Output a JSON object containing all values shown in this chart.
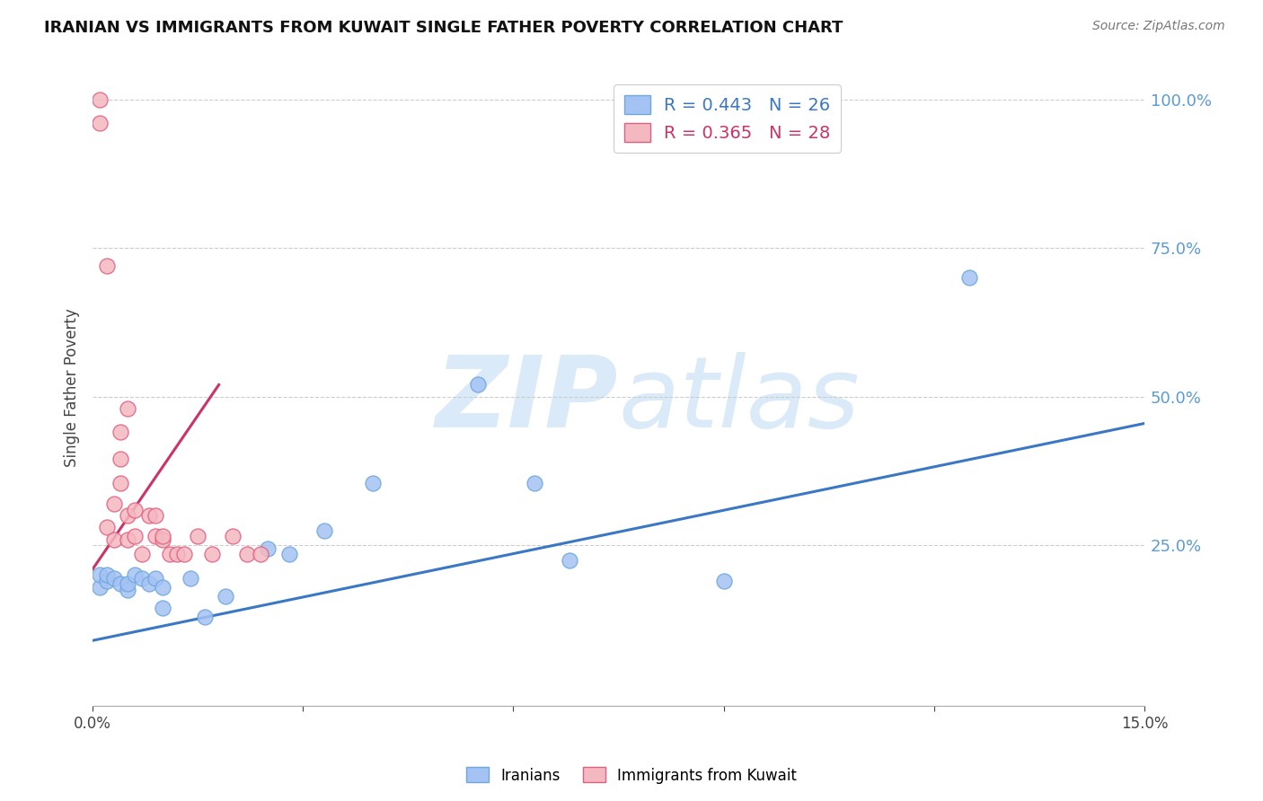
{
  "title": "IRANIAN VS IMMIGRANTS FROM KUWAIT SINGLE FATHER POVERTY CORRELATION CHART",
  "source": "Source: ZipAtlas.com",
  "ylabel": "Single Father Poverty",
  "xlim": [
    0.0,
    0.15
  ],
  "ylim": [
    -0.02,
    1.05
  ],
  "xticks": [
    0.0,
    0.03,
    0.06,
    0.09,
    0.12,
    0.15
  ],
  "xticklabels": [
    "0.0%",
    "",
    "",
    "",
    "",
    "15.0%"
  ],
  "yticks_right": [
    0.25,
    0.5,
    0.75,
    1.0
  ],
  "ytick_right_labels": [
    "25.0%",
    "50.0%",
    "75.0%",
    "100.0%"
  ],
  "iranian_color": "#a4c2f4",
  "iranian_edge_color": "#6fa8dc",
  "kuwait_color": "#f4b8c1",
  "kuwait_edge_color": "#e06080",
  "iranian_R": 0.443,
  "iranian_N": 26,
  "kuwait_R": 0.365,
  "kuwait_N": 28,
  "blue_line_color": "#3b78c4",
  "pink_line_color": "#cc3366",
  "watermark_zip": "ZIP",
  "watermark_atlas": "atlas",
  "watermark_color": "#daeaf8",
  "iranians_x": [
    0.001,
    0.001,
    0.002,
    0.002,
    0.003,
    0.004,
    0.005,
    0.005,
    0.006,
    0.007,
    0.008,
    0.009,
    0.01,
    0.01,
    0.014,
    0.016,
    0.019,
    0.025,
    0.028,
    0.033,
    0.04,
    0.055,
    0.063,
    0.068,
    0.09,
    0.125
  ],
  "iranians_y": [
    0.18,
    0.2,
    0.19,
    0.2,
    0.195,
    0.185,
    0.175,
    0.185,
    0.2,
    0.195,
    0.185,
    0.195,
    0.145,
    0.18,
    0.195,
    0.13,
    0.165,
    0.245,
    0.235,
    0.275,
    0.355,
    0.52,
    0.355,
    0.225,
    0.19,
    0.7
  ],
  "kuwait_x": [
    0.001,
    0.001,
    0.002,
    0.002,
    0.003,
    0.003,
    0.004,
    0.004,
    0.005,
    0.005,
    0.006,
    0.006,
    0.007,
    0.008,
    0.009,
    0.009,
    0.01,
    0.01,
    0.011,
    0.012,
    0.013,
    0.015,
    0.017,
    0.02,
    0.022,
    0.024,
    0.004,
    0.005
  ],
  "kuwait_y": [
    0.96,
    1.0,
    0.72,
    0.28,
    0.26,
    0.32,
    0.395,
    0.355,
    0.3,
    0.26,
    0.31,
    0.265,
    0.235,
    0.3,
    0.265,
    0.3,
    0.26,
    0.265,
    0.235,
    0.235,
    0.235,
    0.265,
    0.235,
    0.265,
    0.235,
    0.235,
    0.44,
    0.48
  ],
  "blue_line_x": [
    0.0,
    0.15
  ],
  "blue_line_y": [
    0.09,
    0.455
  ],
  "pink_line_x": [
    0.0,
    0.018
  ],
  "pink_line_y": [
    0.21,
    0.52
  ]
}
